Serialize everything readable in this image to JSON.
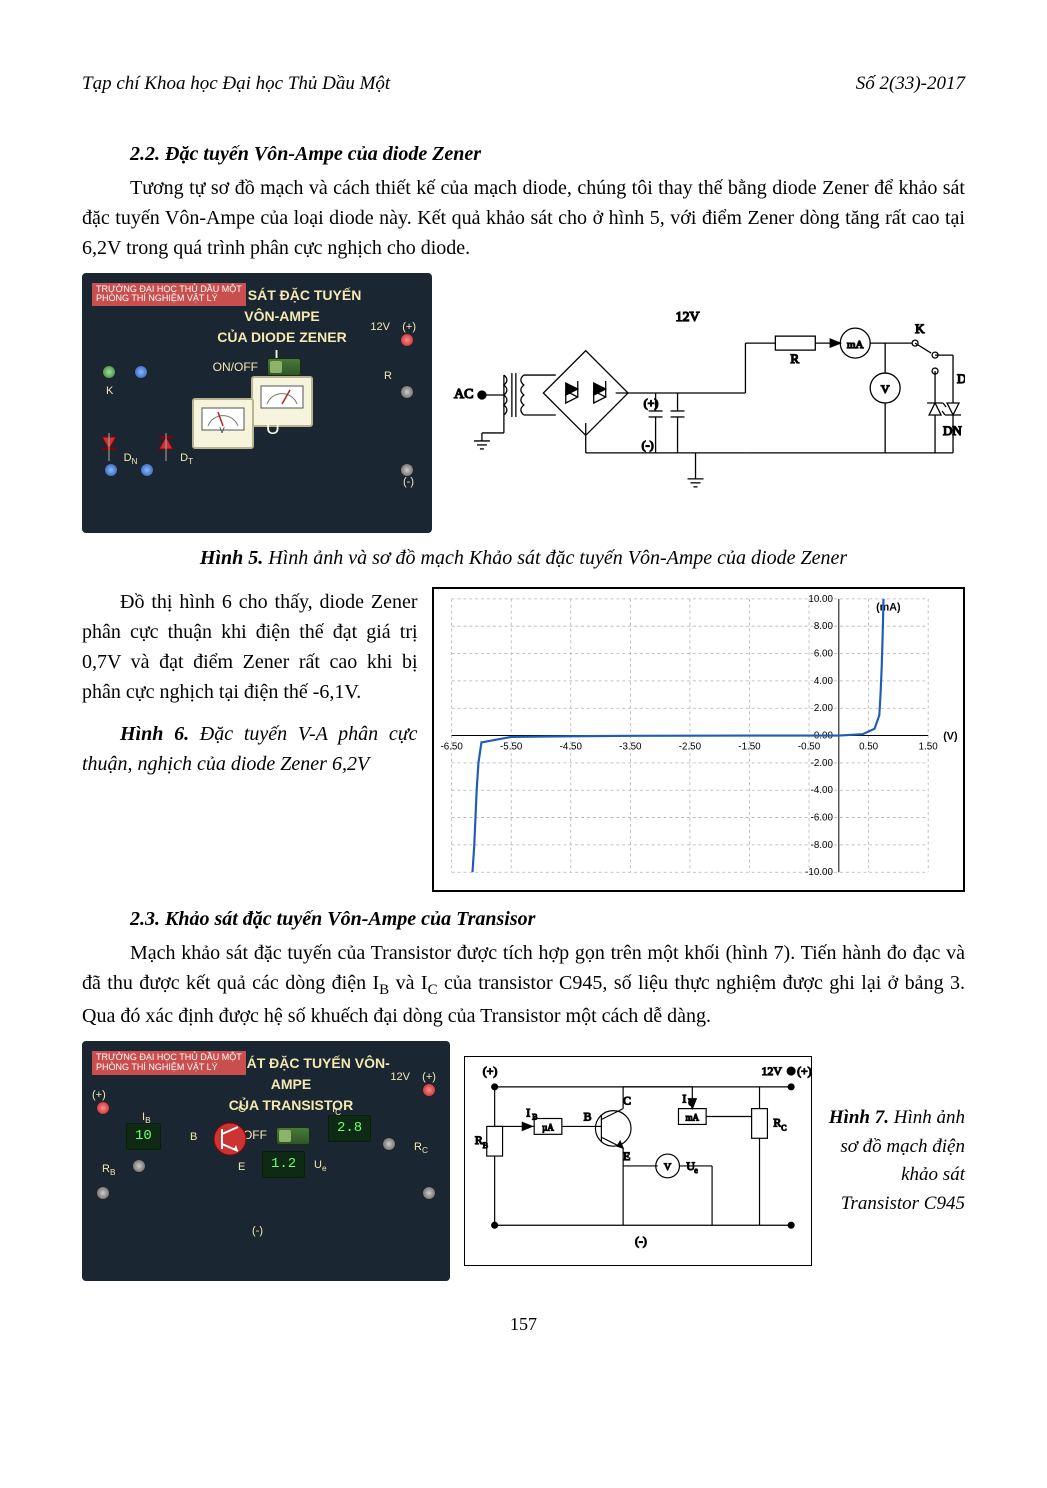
{
  "header": {
    "journal": "Tạp chí Khoa học Đại học Thủ Dầu Một",
    "issue": "Số 2(33)-2017"
  },
  "section22": {
    "heading": "2.2. Đặc tuyến Vôn-Ampe của diode Zener",
    "para": "Tương tự sơ đồ mạch và cách thiết kế của mạch diode, chúng tôi thay thế bằng diode Zener để khảo sát đặc tuyến Vôn-Ampe của loại diode này. Kết quả khảo sát cho ở hình 5, với điểm Zener dòng tăng rất cao tại 6,2V trong quá trình phân cực nghịch cho diode."
  },
  "fig5": {
    "panel": {
      "lab": "TRƯỜNG ĐẠI HỌC THỦ DẦU MỘT\nPHÒNG THÍ NGHIỆM VẬT LÝ",
      "title_l1": "KHẢO SÁT ĐẶC TUYẾN VÔN-AMPE",
      "title_l2": "CỦA DIODE ZENER",
      "v12": "12V",
      "plus": "(+)",
      "minus": "(-)",
      "Id": "I",
      "IdSub": "D",
      "R": "R",
      "U": "U",
      "Dn": "D",
      "DnSub": "N",
      "Dt": "D",
      "DtSub": "T",
      "K": "K",
      "onoff": "ON/OFF"
    },
    "schem": {
      "ac": "AC",
      "v12": "12V",
      "plus": "(+)",
      "minus": "(-)",
      "mA": "mA",
      "R": "R",
      "V": "V",
      "K": "K",
      "Dt": "DT",
      "Dn": "DN"
    },
    "caption_b": "Hình 5.",
    "caption_t": " Hình ảnh và sơ đồ mạch Khảo sát đặc tuyến Vôn-Ampe của diode Zener"
  },
  "chart6": {
    "para": "Đồ thị hình 6 cho thấy, diode Zener phân cực thuận khi điện thế đạt giá trị 0,7V và đạt điểm Zener rất cao khi bị phân cực nghịch tại điện thế -6,1V.",
    "caption_b": "Hình 6.",
    "caption_t": " Đặc tuyến V-A phân cực thuận, nghịch của diode Zener 6,2V",
    "yUnit": "(mA)",
    "xUnit": "(V)",
    "xTicks": [
      "-6.50",
      "-5.50",
      "-4.50",
      "-3.50",
      "-2.50",
      "-1.50",
      "-0.50",
      "0.50",
      "1.50"
    ],
    "yTicks": [
      "10.00",
      "8.00",
      "6.00",
      "4.00",
      "2.00",
      "0.00",
      "-2.00",
      "-4.00",
      "-6.00",
      "-8.00",
      "-10.00"
    ],
    "xlim": [
      -6.5,
      1.5
    ],
    "ylim": [
      -10.0,
      10.0
    ],
    "curve": [
      [
        -6.15,
        -10
      ],
      [
        -6.12,
        -8
      ],
      [
        -6.1,
        -6
      ],
      [
        -6.08,
        -4
      ],
      [
        -6.05,
        -2
      ],
      [
        -6.0,
        -0.5
      ],
      [
        -5.5,
        -0.1
      ],
      [
        -4.5,
        -0.05
      ],
      [
        -3.5,
        -0.02
      ],
      [
        -2.5,
        -0.01
      ],
      [
        -1.5,
        0
      ],
      [
        -0.5,
        0
      ],
      [
        0.0,
        0
      ],
      [
        0.4,
        0.1
      ],
      [
        0.6,
        0.5
      ],
      [
        0.68,
        1.5
      ],
      [
        0.7,
        3
      ],
      [
        0.72,
        5
      ],
      [
        0.74,
        8
      ],
      [
        0.75,
        10
      ]
    ],
    "line_color": "#1f5bb8",
    "grid_color": "#b0b0b0",
    "bg": "#ffffff"
  },
  "section23": {
    "heading": "2.3. Khảo sát đặc tuyến Vôn-Ampe của Transisor",
    "para_1": "Mạch khảo sát đặc tuyến của Transistor được tích hợp gọn trên một khối (hình 7). Tiến hành đo đạc và đã thu được kết quả các dòng điện I",
    "para_ib": "B",
    "para_mid": " và I",
    "para_ic": "C",
    "para_2": " của transistor C945, số liệu thực nghiệm được ghi lại ở bảng 3. Qua đó xác định được hệ số khuếch đại dòng của Transistor một cách dễ dàng."
  },
  "fig7": {
    "panel": {
      "lab": "TRƯỜNG ĐẠI HỌC THỦ DẦU MỘT\nPHÒNG THÍ NGHIỆM VẬT LÝ",
      "title_l1": "KHẢO SÁT ĐẶC TUYẾN VÔN-AMPE",
      "title_l2": "CỦA TRANSISTOR",
      "v12": "12V",
      "plus": "(+)",
      "minus": "(-)",
      "Ib": "I",
      "IbSub": "B",
      "Ic": "I",
      "IcSub": "C",
      "B": "B",
      "C": "C",
      "E": "E",
      "Rb": "R",
      "RbSub": "B",
      "Rc": "R",
      "RcSub": "C",
      "Ue": "U",
      "UeSub": "e",
      "disp_ib": "10",
      "disp_ic": "2.8",
      "disp_ue": "1.2",
      "onoff": "ON/OFF"
    },
    "schem": {
      "plus": "(+)",
      "minus": "(-)",
      "v12": "12V",
      "Ib": "I",
      "IbSub": "B",
      "Ic": "I",
      "IcSub": "C",
      "muA": "µA",
      "mA": "mA",
      "B": "B",
      "C": "C",
      "E": "E",
      "Rb": "R",
      "RbSub": "B",
      "Rc": "R",
      "RcSub": "C",
      "V": "V",
      "Ue": "U",
      "UeSub": "e"
    },
    "caption_b": "Hình 7.",
    "caption_t": " Hình ảnh sơ đồ mạch điện khảo sát Transistor C945"
  },
  "pagenum": "157"
}
